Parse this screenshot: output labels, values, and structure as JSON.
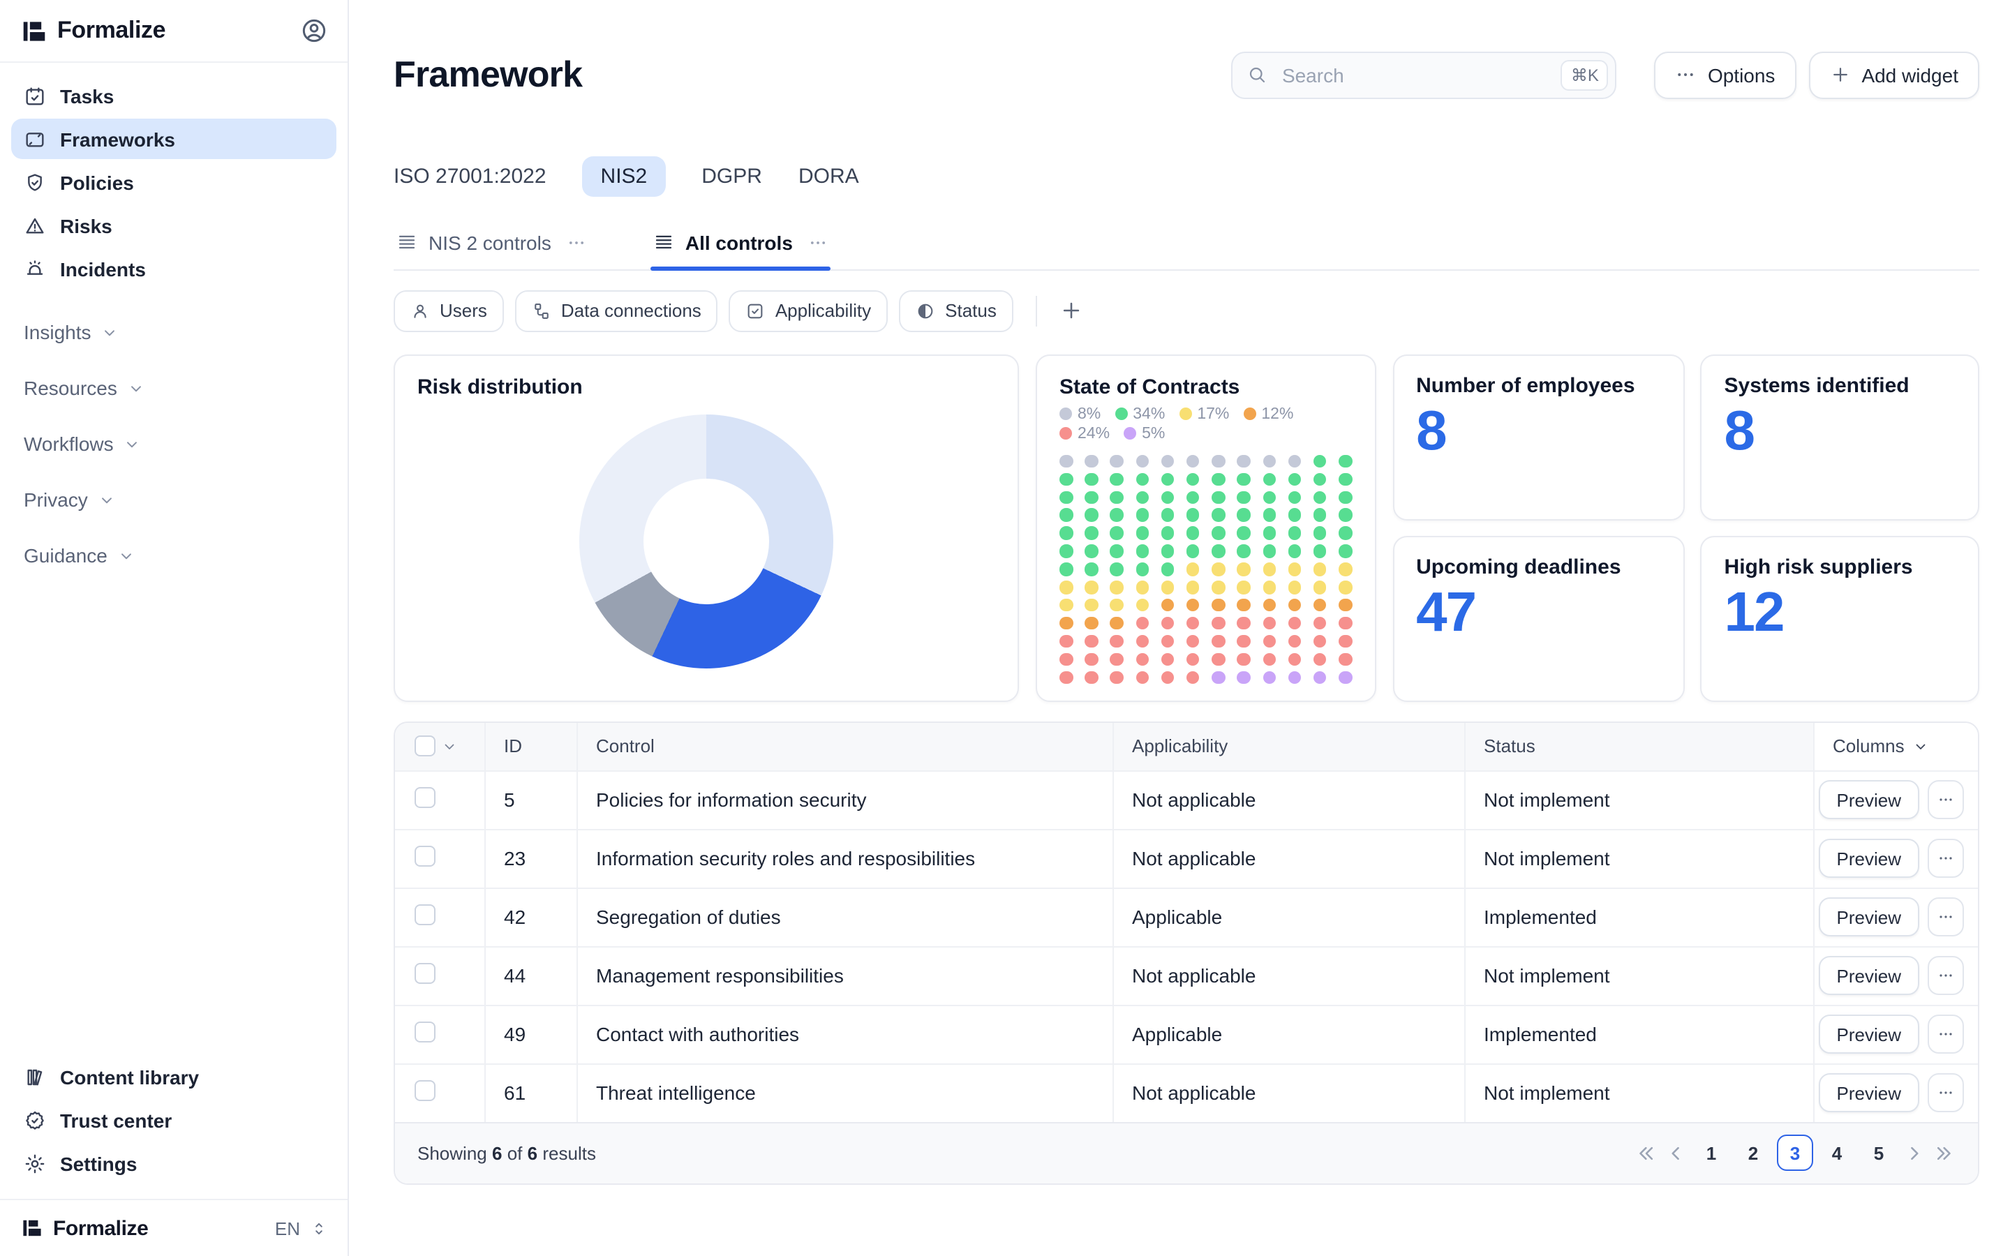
{
  "colors": {
    "accent": "#2E63E6",
    "active_tab_bg": "#D9E7FD",
    "stat_value": "#2B6AE6"
  },
  "sidebar": {
    "logo": "Formalize",
    "nav": [
      {
        "icon": "calendar-check",
        "label": "Tasks"
      },
      {
        "icon": "frame",
        "label": "Frameworks",
        "active": true
      },
      {
        "icon": "shield-check",
        "label": "Policies"
      },
      {
        "icon": "alert-triangle",
        "label": "Risks"
      },
      {
        "icon": "siren",
        "label": "Incidents"
      }
    ],
    "groups": [
      {
        "label": "Insights"
      },
      {
        "label": "Resources"
      },
      {
        "label": "Workflows"
      },
      {
        "label": "Privacy"
      },
      {
        "label": "Guidance"
      }
    ],
    "footer_nav": [
      {
        "icon": "books",
        "label": "Content library"
      },
      {
        "icon": "badge-check",
        "label": "Trust center"
      },
      {
        "icon": "gear",
        "label": "Settings"
      }
    ],
    "bottom": {
      "logo": "Formalize",
      "language": "EN"
    }
  },
  "header": {
    "title": "Framework",
    "search": {
      "placeholder": "Search",
      "shortcut": "⌘K"
    },
    "options_label": "Options",
    "add_widget_label": "Add widget"
  },
  "framework_tabs": [
    {
      "label": "ISO 27001:2022"
    },
    {
      "label": "NIS2",
      "active": true
    },
    {
      "label": "DGPR"
    },
    {
      "label": "DORA"
    }
  ],
  "view_tabs": [
    {
      "label": "NIS 2 controls"
    },
    {
      "label": "All controls",
      "active": true
    }
  ],
  "filters": [
    {
      "icon": "user",
      "label": "Users"
    },
    {
      "icon": "hierarchy",
      "label": "Data connections"
    },
    {
      "icon": "checkbox",
      "label": "Applicability"
    },
    {
      "icon": "half-circle",
      "label": "Status"
    }
  ],
  "widgets": {
    "risk_title": "Risk distribution",
    "contracts_title": "State of Contracts",
    "stats": [
      {
        "label": "Number of employees",
        "value": "8"
      },
      {
        "label": "Systems identified",
        "value": "8"
      },
      {
        "label": "Upcoming deadlines",
        "value": "47"
      },
      {
        "label": "High risk suppliers",
        "value": "12"
      }
    ]
  },
  "chart_data": [
    {
      "type": "pie",
      "title": "Risk distribution",
      "donut": true,
      "legend_position": "none",
      "series": [
        {
          "name": "light-blue-segment",
          "value": 32,
          "color": "#D8E3F7"
        },
        {
          "name": "blue-segment",
          "value": 25,
          "color": "#2E63E6"
        },
        {
          "name": "gray-segment",
          "value": 10,
          "color": "#98A1B1"
        },
        {
          "name": "pale-blue-segment",
          "value": 33,
          "color": "#EAEFF9"
        }
      ]
    },
    {
      "type": "heatmap",
      "subtype": "dot-matrix",
      "title": "State of Contracts",
      "columns": 12,
      "legend": [
        {
          "label": "8%",
          "color_key": "gray"
        },
        {
          "label": "34%",
          "color_key": "green"
        },
        {
          "label": "17%",
          "color_key": "yellow"
        },
        {
          "label": "12%",
          "color_key": "orange"
        },
        {
          "label": "24%",
          "color_key": "red"
        },
        {
          "label": "5%",
          "color_key": "purple"
        }
      ],
      "palette": {
        "gray": "#C4C9D8",
        "green": "#57DD91",
        "yellow": "#F8DF72",
        "orange": "#F2A44D",
        "red": "#F6908D",
        "purple": "#C9A4F8"
      },
      "grid_rows": [
        [
          [
            "gray",
            10
          ],
          [
            "green",
            2
          ]
        ],
        [
          [
            "green",
            12
          ]
        ],
        [
          [
            "green",
            12
          ]
        ],
        [
          [
            "green",
            12
          ]
        ],
        [
          [
            "green",
            12
          ]
        ],
        [
          [
            "green",
            12
          ]
        ],
        [
          [
            "green",
            5
          ],
          [
            "yellow",
            7
          ]
        ],
        [
          [
            "yellow",
            12
          ]
        ],
        [
          [
            "yellow",
            4
          ],
          [
            "orange",
            8
          ]
        ],
        [
          [
            "orange",
            3
          ],
          [
            "red",
            9
          ]
        ],
        [
          [
            "red",
            12
          ]
        ],
        [
          [
            "red",
            12
          ]
        ],
        [
          [
            "red",
            6
          ],
          [
            "purple",
            6
          ]
        ]
      ]
    }
  ],
  "table": {
    "header": {
      "id": "ID",
      "control": "Control",
      "applicability": "Applicability",
      "status": "Status",
      "columns_label": "Columns"
    },
    "preview_label": "Preview",
    "rows": [
      {
        "id": "5",
        "control": "Policies for information security",
        "applicability": "Not applicable",
        "status": "Not implement"
      },
      {
        "id": "23",
        "control": "Information security roles and resposibilities",
        "applicability": "Not applicable",
        "status": "Not implement"
      },
      {
        "id": "42",
        "control": "Segregation of duties",
        "applicability": "Applicable",
        "status": "Implemented"
      },
      {
        "id": "44",
        "control": "Management responsibilities",
        "applicability": "Not applicable",
        "status": "Not implement"
      },
      {
        "id": "49",
        "control": "Contact with authorities",
        "applicability": "Applicable",
        "status": "Implemented"
      },
      {
        "id": "61",
        "control": "Threat intelligence",
        "applicability": "Not applicable",
        "status": "Not implement"
      }
    ],
    "footer": {
      "showing_prefix": "Showing",
      "shown_count": "6",
      "of_word": "of",
      "total_count": "6",
      "results_word": "results",
      "pages": [
        "1",
        "2",
        "3",
        "4",
        "5"
      ],
      "current_page": "3"
    }
  }
}
